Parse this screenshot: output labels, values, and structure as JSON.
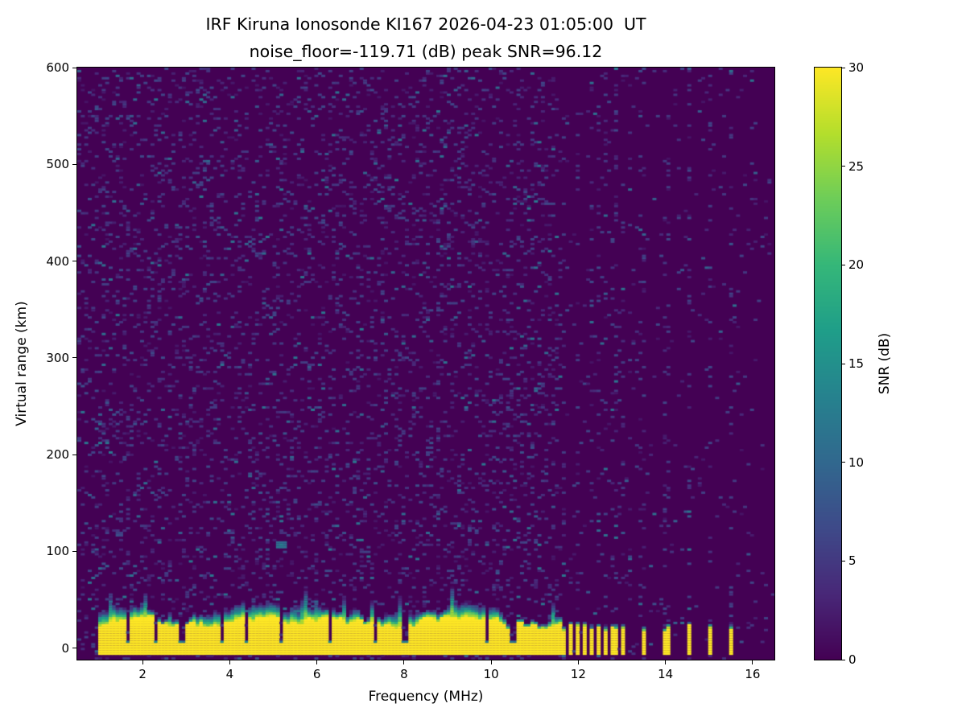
{
  "chart_data": {
    "type": "heatmap",
    "title": "IRF Kiruna Ionosonde KI167 2026-04-23 01:05:00  UT",
    "subtitle": "noise_floor=-119.71 (dB) peak SNR=96.12",
    "xlabel": "Frequency (MHz)",
    "ylabel": "Virtual range (km)",
    "colorbar_label": "SNR (dB)",
    "colormap": "viridis",
    "xlim": [
      0.5,
      16.5
    ],
    "ylim": [
      -12,
      600
    ],
    "clim": [
      0,
      30
    ],
    "xticks": [
      2,
      4,
      6,
      8,
      10,
      12,
      14,
      16
    ],
    "yticks": [
      0,
      100,
      200,
      300,
      400,
      500,
      600
    ],
    "colorbar_ticks": [
      0,
      5,
      10,
      15,
      20,
      25,
      30
    ],
    "colors": {
      "background": "#ffffff",
      "text": "#000000",
      "colormap_low": "#440154",
      "colormap_high": "#fde725"
    },
    "features": {
      "ground_echo_band": {
        "freq_range_mhz": [
          0.95,
          11.62
        ],
        "top_km_mean": 27,
        "top_km_range": [
          20,
          33
        ],
        "snr_db": 30
      },
      "band_fringe_thickness_km": [
        4,
        15
      ],
      "band_notches_mhz": [
        1.63,
        2.32,
        2.9,
        3.8,
        4.35,
        5.2,
        6.3,
        7.35,
        8.02,
        9.9,
        10.5
      ],
      "comb_stripes_mhz": [
        11.68,
        11.82,
        11.97,
        12.12,
        12.28,
        12.45,
        12.63,
        12.82,
        13.02
      ],
      "isolated_stripes_mhz": [
        13.47,
        14.02,
        14.55,
        15.02,
        15.5
      ],
      "stripe_width_mhz": 0.09,
      "stripe_top_km_range": [
        17,
        24
      ],
      "interference_noise_columns_mhz": [
        11.68,
        11.97,
        12.28,
        12.45,
        12.63,
        12.82,
        13.02,
        13.2,
        13.47,
        14.02,
        14.55,
        15.02,
        15.5
      ],
      "echo_trace": {
        "freq_mhz": 5.2,
        "range_km": 106,
        "snr_db": 10
      },
      "background_noise_snr_db": [
        0,
        7
      ]
    }
  }
}
